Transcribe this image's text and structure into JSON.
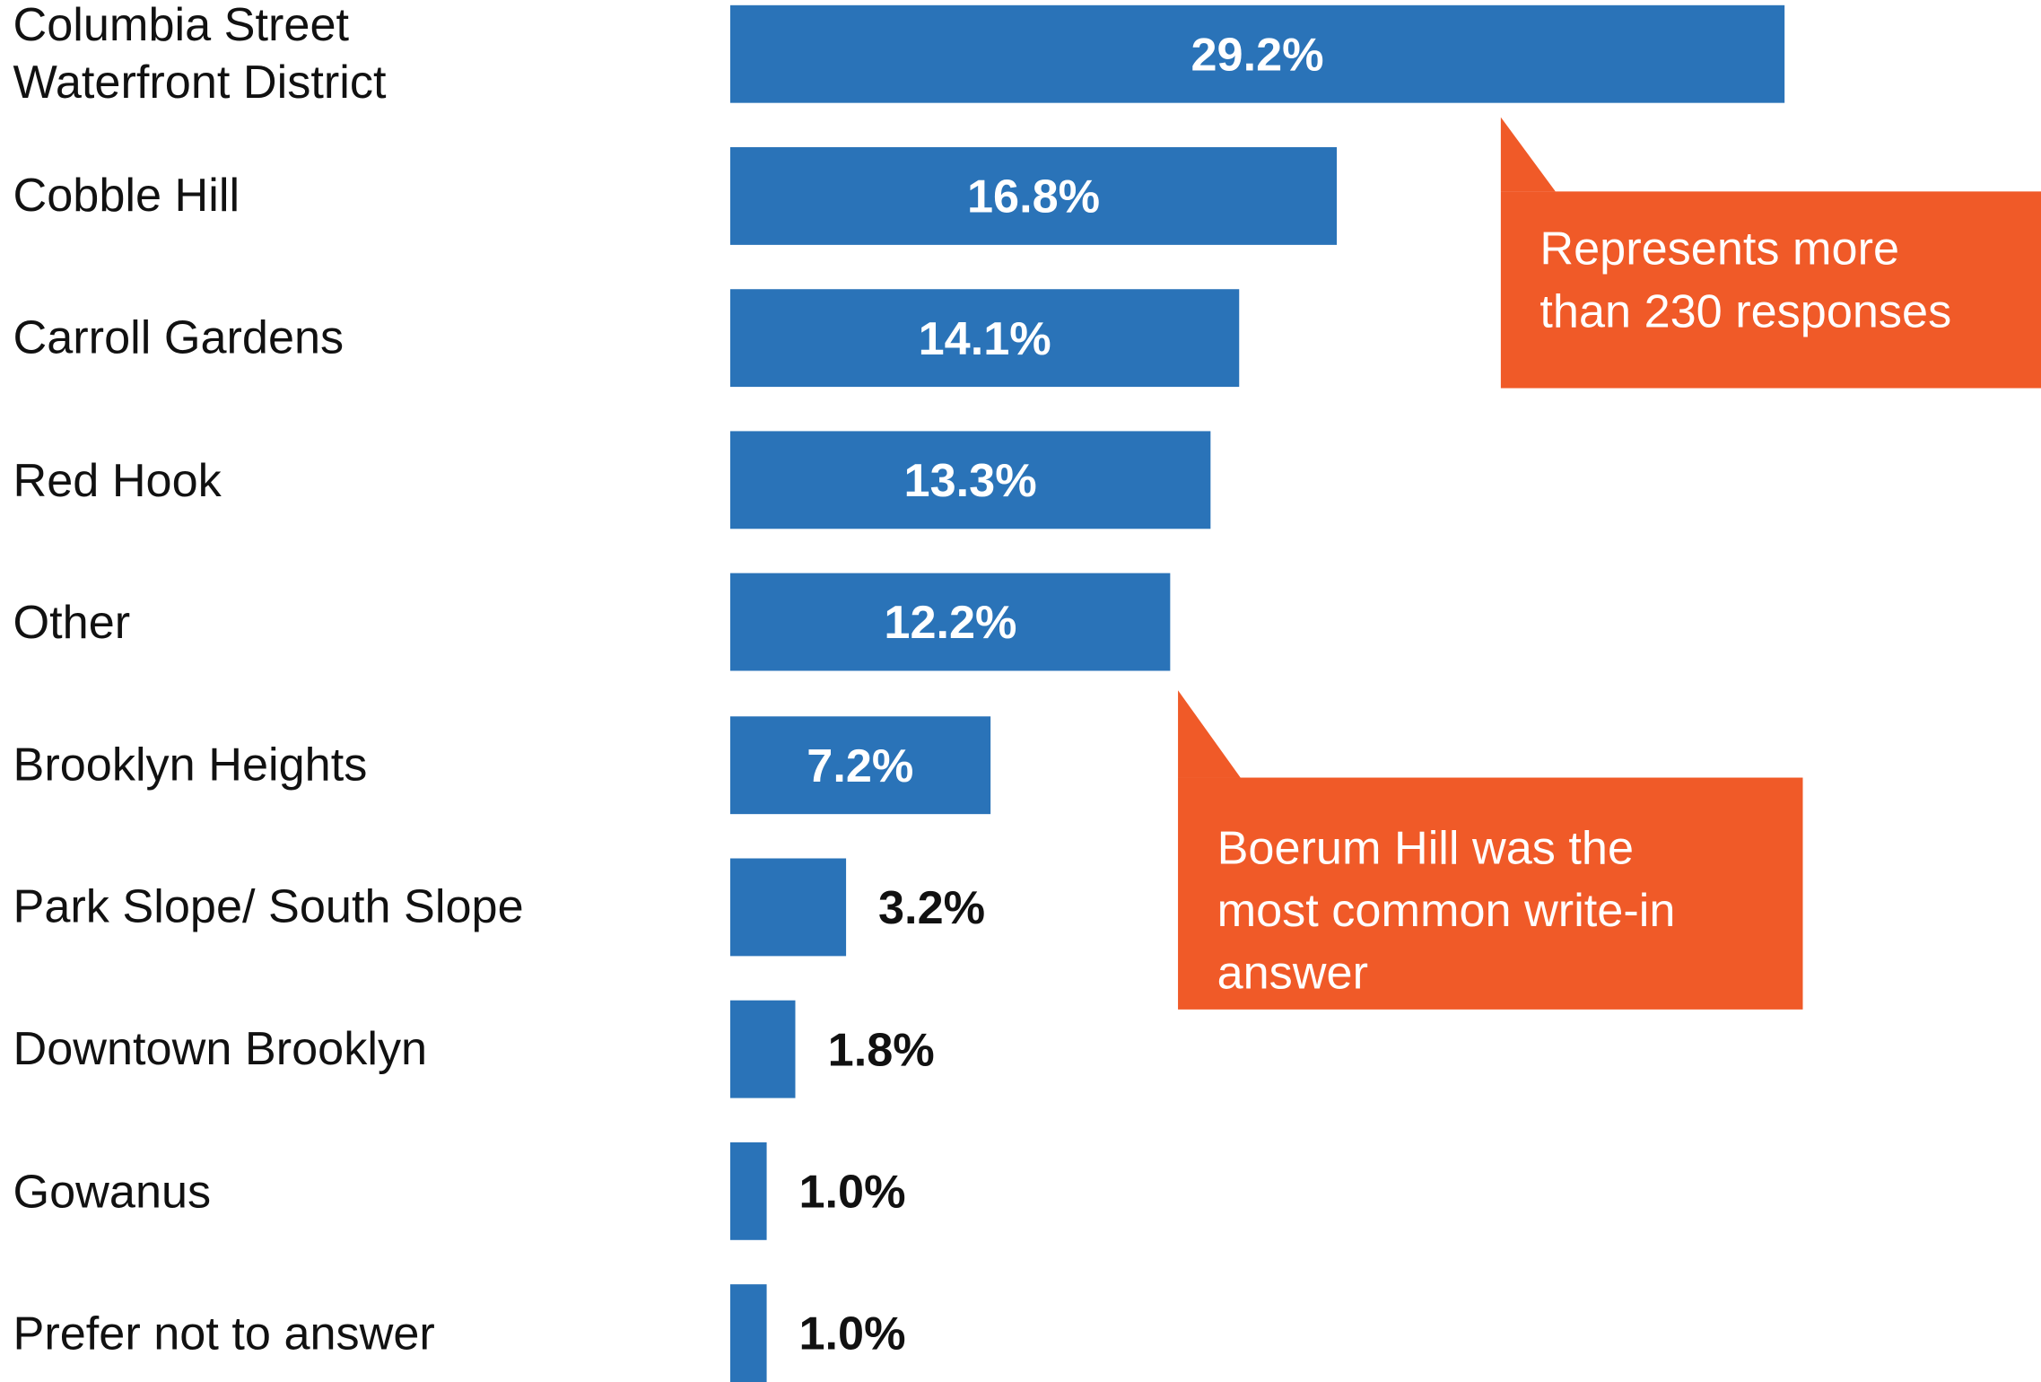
{
  "chart_data": {
    "type": "bar",
    "orientation": "horizontal",
    "categories": [
      "Columbia Street\nWaterfront District",
      "Cobble Hill",
      "Carroll Gardens",
      "Red Hook",
      "Other",
      "Brooklyn Heights",
      "Park Slope/ South Slope",
      "Downtown Brooklyn",
      "Gowanus",
      "Prefer not to answer"
    ],
    "values": [
      29.2,
      16.8,
      14.1,
      13.3,
      12.2,
      7.2,
      3.2,
      1.8,
      1.0,
      1.0
    ],
    "value_labels": [
      "29.2%",
      "16.8%",
      "14.1%",
      "13.3%",
      "12.2%",
      "7.2%",
      "3.2%",
      "1.8%",
      "1.0%",
      "1.0%"
    ],
    "color": "#2a73b8",
    "annotations": [
      {
        "text": "Represents more\nthan 230 responses",
        "color": "#f05a28"
      },
      {
        "text": "Boerum Hill was the\nmost common write-in\nanswer",
        "color": "#f05a28"
      }
    ]
  }
}
